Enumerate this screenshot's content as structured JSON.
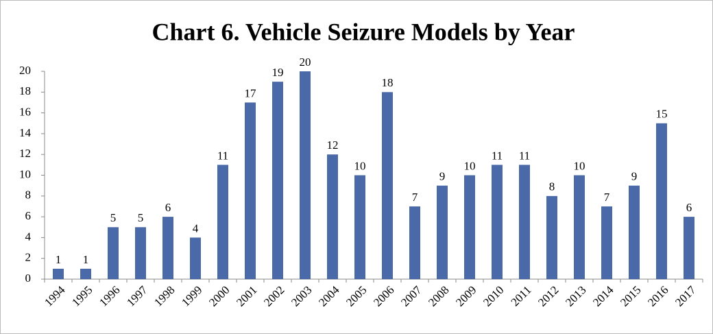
{
  "chart_data": {
    "type": "bar",
    "title": "Chart 6. Vehicle Seizure Models by Year",
    "categories": [
      "1994",
      "1995",
      "1996",
      "1997",
      "1998",
      "1999",
      "2000",
      "2001",
      "2002",
      "2003",
      "2004",
      "2005",
      "2006",
      "2007",
      "2008",
      "2009",
      "2010",
      "2011",
      "2012",
      "2013",
      "2014",
      "2015",
      "2016",
      "2017"
    ],
    "values": [
      1,
      1,
      5,
      5,
      6,
      4,
      11,
      17,
      19,
      20,
      12,
      10,
      18,
      7,
      9,
      10,
      11,
      11,
      8,
      10,
      7,
      9,
      15,
      6
    ],
    "color": "#4a69a8",
    "ylim": [
      0,
      20
    ],
    "yticks": [
      0,
      2,
      4,
      6,
      8,
      10,
      12,
      14,
      16,
      18,
      20
    ],
    "grid": false
  }
}
